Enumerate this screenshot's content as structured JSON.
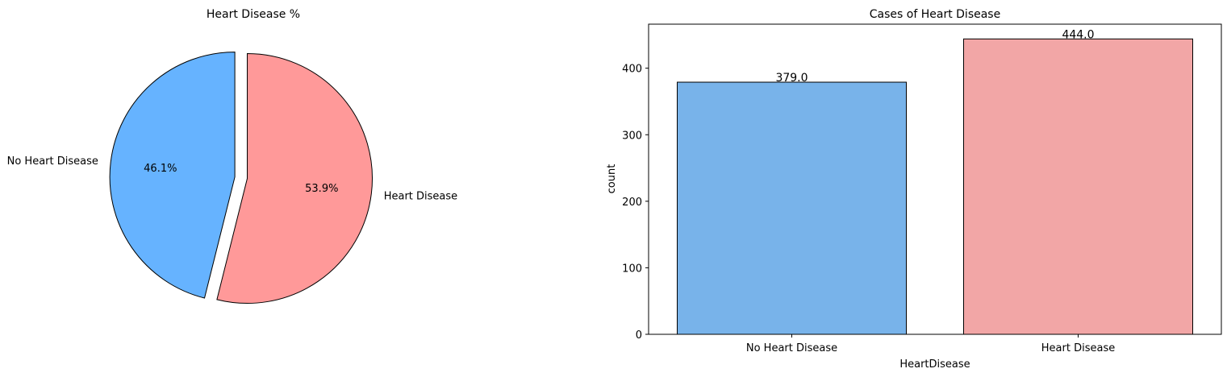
{
  "chart_data": [
    {
      "type": "pie",
      "title": "Heart Disease %",
      "categories": [
        "No Heart Disease",
        "Heart Disease"
      ],
      "values": [
        46.1,
        53.9
      ],
      "value_labels": [
        "46.1%",
        "53.9%"
      ],
      "explode": [
        0.1,
        0
      ],
      "colors": [
        "#66b3ff",
        "#ff9999"
      ],
      "edge_color": "#000000",
      "start": "top, slices drawn counter-clockwise"
    },
    {
      "type": "bar",
      "title": "Cases of Heart Disease",
      "categories": [
        "No Heart Disease",
        "Heart Disease"
      ],
      "values": [
        379,
        444
      ],
      "value_labels": [
        "379.0",
        "444.0"
      ],
      "xlabel": "HeartDisease",
      "ylabel": "count",
      "ylim": [
        0,
        466.2
      ],
      "yticks": [
        0,
        100,
        200,
        300,
        400
      ],
      "colors": [
        "#78b3ea",
        "#f2a6a6"
      ],
      "edge_color": "#000000",
      "grid": false
    }
  ]
}
